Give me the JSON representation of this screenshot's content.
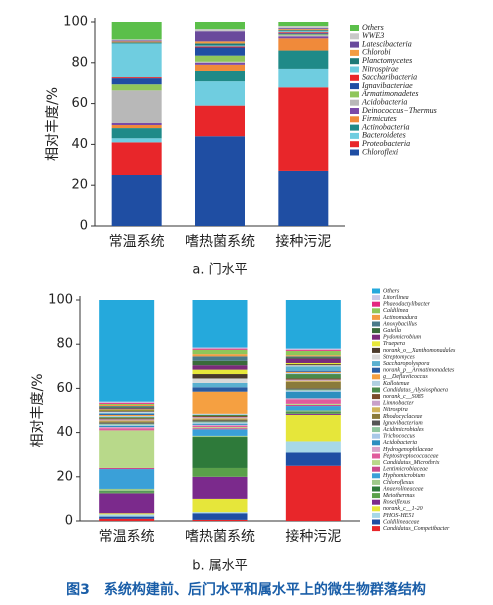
{
  "figure_caption": "图3　系统构建前、后门水平和属水平上的微生物群落结构",
  "chart_data": [
    {
      "type": "stacked_bar",
      "caption": "a. 门水平",
      "ylabel": "相对丰度/%",
      "categories": [
        "常温系统",
        "嗜热菌系统",
        "接种污泥"
      ],
      "ylim": [
        0,
        100
      ],
      "yticks": [
        0,
        20,
        40,
        60,
        80,
        100
      ],
      "series": [
        {
          "name": "Others",
          "color": "#5bbf4a",
          "values": [
            8.5,
            3.5,
            2
          ]
        },
        {
          "name": "WWE3",
          "color": "#c8c8c8",
          "values": [
            0.5,
            1,
            1
          ]
        },
        {
          "name": "Latescibacteria",
          "color": "#6a4a9c",
          "values": [
            0.5,
            5,
            0.5
          ]
        },
        {
          "name": "Chlorobi",
          "color": "#f39c43",
          "values": [
            0.5,
            1,
            0.5
          ]
        },
        {
          "name": "Planctomycetes",
          "color": "#1f7a78",
          "values": [
            0.5,
            1,
            0.5
          ]
        },
        {
          "name": "Nitrospirae",
          "color": "#6fcde0",
          "values": [
            16.5,
            0.5,
            0.5
          ]
        },
        {
          "name": "Saccharibacteria",
          "color": "#e8262a",
          "values": [
            0.5,
            0.5,
            0.5
          ]
        },
        {
          "name": "Ignavibacteriae",
          "color": "#1f4ea3",
          "values": [
            3,
            4,
            0.5
          ]
        },
        {
          "name": "Armatimonadetes",
          "color": "#8fc65a",
          "values": [
            3,
            3,
            0.5
          ]
        },
        {
          "name": "Acidobacteria",
          "color": "#b8b8b8",
          "values": [
            16,
            0.5,
            0.5
          ]
        },
        {
          "name": "Deinococcus−Thermus",
          "color": "#7a4aa8",
          "values": [
            1,
            1,
            1
          ]
        },
        {
          "name": "Firmicutes",
          "color": "#f08a3a",
          "values": [
            1.5,
            3,
            6
          ]
        },
        {
          "name": "Actinobacteria",
          "color": "#1f8a88",
          "values": [
            5,
            5,
            9
          ]
        },
        {
          "name": "Bacteroidetes",
          "color": "#6fcde0",
          "values": [
            2,
            12,
            9
          ]
        },
        {
          "name": "Proteobacteria",
          "color": "#e8262a",
          "values": [
            16,
            15,
            41
          ]
        },
        {
          "name": "Chloroflexi",
          "color": "#1f4ea3",
          "values": [
            25,
            44,
            27
          ]
        }
      ]
    },
    {
      "type": "stacked_bar",
      "caption": "b. 属水平",
      "ylabel": "相对丰度/%",
      "categories": [
        "常温系统",
        "嗜热菌系统",
        "接种污泥"
      ],
      "ylim": [
        0,
        100
      ],
      "yticks": [
        0,
        20,
        40,
        60,
        80,
        100
      ],
      "series": [
        {
          "name": "Others",
          "color": "#25a9dc",
          "values": [
            46,
            21.5,
            22
          ]
        },
        {
          "name": "Litorilinea",
          "color": "#c9c9e8",
          "values": [
            0.5,
            0.5,
            0.5
          ]
        },
        {
          "name": "Phaeodactylibacter",
          "color": "#e4287f",
          "values": [
            0.5,
            0.5,
            0.5
          ]
        },
        {
          "name": "Caldilinea",
          "color": "#8fc65a",
          "values": [
            0.5,
            2,
            2
          ]
        },
        {
          "name": "Actinomadura",
          "color": "#f39c43",
          "values": [
            0.5,
            1,
            0.5
          ]
        },
        {
          "name": "Anoxybacillus",
          "color": "#4a7a8a",
          "values": [
            0.5,
            2,
            0.5
          ]
        },
        {
          "name": "Gaiella",
          "color": "#3a6a3a",
          "values": [
            0.5,
            2,
            0.5
          ]
        },
        {
          "name": "Pydomicrobium",
          "color": "#7a2a7a",
          "values": [
            0.5,
            2,
            2
          ]
        },
        {
          "name": "Truepera",
          "color": "#e8e83a",
          "values": [
            0.5,
            2,
            0.5
          ]
        },
        {
          "name": "norank_o__Xanthomonadales",
          "color": "#4a3a2a",
          "values": [
            0.5,
            2,
            0.5
          ]
        },
        {
          "name": "Streptomyces",
          "color": "#d9d9d9",
          "values": [
            0.5,
            2,
            0.5
          ]
        },
        {
          "name": "Saccharopolyspora",
          "color": "#5ab0d0",
          "values": [
            0.5,
            2,
            2
          ]
        },
        {
          "name": "norank_p__Armatimonadetes",
          "color": "#2a5aa0",
          "values": [
            0.5,
            2,
            0.5
          ]
        },
        {
          "name": "g__Defluviicoccus",
          "color": "#f5a041",
          "values": [
            0.5,
            10,
            0.5
          ]
        },
        {
          "name": "Kallotenue",
          "color": "#b0d0e0",
          "values": [
            0.5,
            0.5,
            0.5
          ]
        },
        {
          "name": "Candidatus_Alysiosphaera",
          "color": "#4a8a4a",
          "values": [
            0.5,
            0.5,
            2
          ]
        },
        {
          "name": "norank_c__S085",
          "color": "#7a4a2a",
          "values": [
            0.5,
            0.5,
            0.5
          ]
        },
        {
          "name": "Limnobacter",
          "color": "#c9a0c9",
          "values": [
            0.5,
            0.5,
            0.5
          ]
        },
        {
          "name": "Nitrospira",
          "color": "#d1b35a",
          "values": [
            0.5,
            0.5,
            0.5
          ]
        },
        {
          "name": "Rhodocyclaceae",
          "color": "#8a7a3a",
          "values": [
            0.5,
            0.5,
            3
          ]
        },
        {
          "name": "Ignavibacterium",
          "color": "#555555",
          "values": [
            0.5,
            0.5,
            0.5
          ]
        },
        {
          "name": "Acidimicrobiales",
          "color": "#8fc69e",
          "values": [
            0.5,
            0.5,
            0.5
          ]
        },
        {
          "name": "Trichococcus",
          "color": "#a8c8e8",
          "values": [
            0.5,
            0.5,
            0.5
          ]
        },
        {
          "name": "Acidobacteria",
          "color": "#2c8fbf",
          "values": [
            0.5,
            0.5,
            3
          ]
        },
        {
          "name": "Hydrogenophilaceae",
          "color": "#d9a3c9",
          "values": [
            0.5,
            0.5,
            0.5
          ]
        },
        {
          "name": "Peptostreptococcaceae",
          "color": "#e05b9c",
          "values": [
            1,
            0.5,
            2
          ]
        },
        {
          "name": "Candidatus_Microthrix",
          "color": "#b8d98a",
          "values": [
            17,
            0.5,
            0.5
          ]
        },
        {
          "name": "Lentimicrobiaceae",
          "color": "#c94a8c",
          "values": [
            0.5,
            0.5,
            0.5
          ]
        },
        {
          "name": "Hyphomicrobium",
          "color": "#3aa0d8",
          "values": [
            9,
            3,
            2
          ]
        },
        {
          "name": "Chloroflexus",
          "color": "#9ec98a",
          "values": [
            1,
            0.5,
            0.5
          ]
        },
        {
          "name": "Anaerolineaceae",
          "color": "#2e7a3a",
          "values": [
            0.5,
            14,
            0.5
          ]
        },
        {
          "name": "Meiothermus",
          "color": "#5aa04a",
          "values": [
            0.5,
            4,
            0.5
          ]
        },
        {
          "name": "Roseiflexus",
          "color": "#7b2a8c",
          "values": [
            9,
            10,
            0.5
          ]
        },
        {
          "name": "norank_c__1-20",
          "color": "#e6e63a",
          "values": [
            0.5,
            6,
            12
          ]
        },
        {
          "name": "PHOS-HE51",
          "color": "#a7d8e8",
          "values": [
            1,
            0.5,
            5
          ]
        },
        {
          "name": "Caldilineaceae",
          "color": "#1f4ea3",
          "values": [
            1,
            3,
            6
          ]
        },
        {
          "name": "Candidatus_Competibacter",
          "color": "#e8262a",
          "values": [
            1,
            0.5,
            25
          ]
        }
      ]
    }
  ]
}
